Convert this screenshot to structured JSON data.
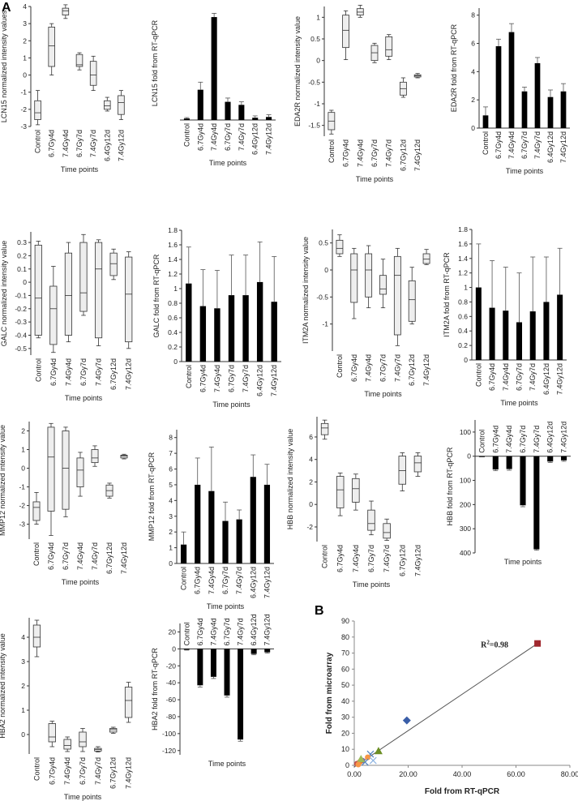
{
  "figure": {
    "panel_a_label": "A",
    "panel_b_label": "B"
  },
  "chart_data": [
    {
      "id": "lcn15_box",
      "type": "box",
      "ylabel": "LCN15 normalized intensity values",
      "xlabel": "Time points",
      "categories": [
        "Control",
        "6.7Gy4d",
        "7.4Gy4d",
        "6.7Gy7d",
        "7.4Gy7d",
        "6.4Gy12d",
        "7.4Gy12d"
      ],
      "ylim": [
        -3,
        4
      ],
      "yticks": [
        -3,
        -2,
        -1,
        0,
        1,
        2,
        3,
        4
      ],
      "boxes": [
        [
          -2.9,
          -2.6,
          -2.2,
          -1.5,
          -0.9
        ],
        [
          0,
          0.5,
          1.7,
          2.8,
          3
        ],
        [
          3.3,
          3.5,
          3.75,
          3.9,
          4.1
        ],
        [
          0.3,
          0.5,
          0.6,
          1.2,
          1.3
        ],
        [
          -0.9,
          -0.6,
          0,
          0.8,
          1.1
        ],
        [
          -2.1,
          -2,
          -1.8,
          -1.5,
          -1.3
        ],
        [
          -2.6,
          -2.3,
          -1.6,
          -1.2,
          -0.9
        ]
      ]
    },
    {
      "id": "lcn15_bar",
      "type": "bar",
      "ylabel": "LCN15 fold from RT-qPCR",
      "xlabel": "Time points",
      "categories": [
        "Control",
        "6.7Gy4d",
        "7.4Gy4d",
        "6.7Gy7d",
        "7.4Gy7d",
        "6.4Gy12d",
        "7.4Gy12d"
      ],
      "ylim": [
        0,
        75
      ],
      "yticks": [],
      "values": [
        1,
        20,
        68,
        12,
        10,
        1.5,
        2
      ],
      "errors": [
        0.6,
        5,
        2.5,
        2.5,
        2,
        1.2,
        1.5
      ]
    },
    {
      "id": "eda2r_box",
      "type": "box",
      "ylabel": "EDA2R normalized intensity value",
      "xlabel": "Time points",
      "categories": [
        "Control",
        "6.7Gy4d",
        "7.4Gy4d",
        "6.7Gy7d",
        "7.4Gy7d",
        "6.7Gy12d",
        "7.4Gy12d"
      ],
      "ylim": [
        -1.75,
        1.25
      ],
      "yticks": [
        -1.5,
        -1,
        -0.5,
        0,
        0.5,
        1
      ],
      "boxes": [
        [
          -1.7,
          -1.6,
          -1.4,
          -1.2,
          -1.15
        ],
        [
          0.02,
          0.3,
          0.7,
          1.05,
          1.15
        ],
        [
          1,
          1.05,
          1.12,
          1.2,
          1.28
        ],
        [
          -0.05,
          0,
          0.18,
          0.35,
          0.4
        ],
        [
          0.02,
          0.1,
          0.25,
          0.55,
          0.6
        ],
        [
          -0.85,
          -0.8,
          -0.65,
          -0.5,
          -0.4
        ],
        [
          -0.4,
          -0.38,
          -0.35,
          -0.33,
          -0.3
        ]
      ]
    },
    {
      "id": "eda2r_bar",
      "type": "bar",
      "ylabel": "EDA2R fold from RT-qPCR",
      "xlabel": "Time points",
      "categories": [
        "Control",
        "6.7Gy4d",
        "7.4Gy4d",
        "6.7Gy7d",
        "7.4Gy7d",
        "6.4Gy12d",
        "7.4Gy12d"
      ],
      "ylim": [
        0,
        8.5
      ],
      "yticks": [
        0,
        2,
        4,
        6,
        8
      ],
      "values": [
        0.9,
        5.8,
        6.8,
        2.6,
        4.6,
        2.2,
        2.6
      ],
      "errors": [
        0.6,
        0.5,
        0.6,
        0.3,
        0.4,
        0.5,
        0.55
      ]
    },
    {
      "id": "galc_box",
      "type": "box",
      "ylabel": "GALC normalized intensity value",
      "xlabel": "Time points",
      "categories": [
        "Control",
        "6.7Gy4d",
        "7.4Gy4d",
        "6.7Gy7d",
        "7.4Gy7d",
        "6.7Gy12d",
        "7.4Gy12d"
      ],
      "ylim": [
        -0.55,
        0.38
      ],
      "yticks": [
        -0.5,
        -0.4,
        -0.3,
        -0.2,
        -0.1,
        0,
        0.1,
        0.2,
        0.3
      ],
      "boxes": [
        [
          -0.42,
          -0.4,
          -0.12,
          0.28,
          0.31
        ],
        [
          -0.53,
          -0.47,
          -0.2,
          -0.03,
          0.12
        ],
        [
          -0.45,
          -0.4,
          -0.1,
          0.22,
          0.3
        ],
        [
          -0.25,
          -0.22,
          -0.08,
          0.3,
          0.36
        ],
        [
          -0.48,
          -0.42,
          0.1,
          0.3,
          0.32
        ],
        [
          0.02,
          0.05,
          0.14,
          0.22,
          0.25
        ],
        [
          -0.5,
          -0.45,
          -0.09,
          0.19,
          0.23
        ]
      ]
    },
    {
      "id": "galc_bar",
      "type": "bar",
      "ylabel": "GALC fold from RT-qPCR",
      "xlabel": "Time points",
      "categories": [
        "Control",
        "6.7Gy4d",
        "7.4Gy4d",
        "6.7Gy7d",
        "7.4Gy7d",
        "6.4Gy12d",
        "7.4Gy12d"
      ],
      "ylim": [
        0,
        1.8
      ],
      "yticks": [
        0,
        0.2,
        0.4,
        0.6,
        0.8,
        1,
        1.2,
        1.4,
        1.6,
        1.8
      ],
      "values": [
        1.07,
        0.76,
        0.73,
        0.91,
        0.91,
        1.09,
        0.82
      ],
      "errors": [
        0.5,
        0.5,
        0.52,
        0.55,
        0.55,
        0.55,
        0.62
      ]
    },
    {
      "id": "itm2a_box",
      "type": "box",
      "ylabel": "ITM2A normalized intensity value",
      "xlabel": "Time points",
      "categories": [
        "Control",
        "6.7Gy4d",
        "7.4Gy4d",
        "6.7Gy7d",
        "7.4Gy7d",
        "6.7Gy12d",
        "7.4Gy12d"
      ],
      "ylim": [
        -1.5,
        0.75
      ],
      "yticks": [
        -1,
        -0.5,
        0,
        0.5
      ],
      "boxes": [
        [
          0.25,
          0.3,
          0.4,
          0.55,
          0.65
        ],
        [
          -0.9,
          -0.6,
          0,
          0.3,
          0.4
        ],
        [
          -0.7,
          -0.5,
          0,
          0.3,
          0.45
        ],
        [
          -0.7,
          -0.45,
          -0.35,
          -0.1,
          0.2
        ],
        [
          -1.4,
          -1.2,
          -0.1,
          0.25,
          0.4
        ],
        [
          -1,
          -0.95,
          -0.55,
          -0.2,
          0.05
        ],
        [
          0.1,
          0.12,
          0.2,
          0.3,
          0.38
        ]
      ]
    },
    {
      "id": "itm2a_bar",
      "type": "bar",
      "ylabel": "ITM2A fold from RT-qPCR",
      "xlabel": "Time points",
      "categories": [
        "Control",
        "6.7Gy4d",
        "7.4Gy4d",
        "6.7Gy7d",
        "7.4Gy7d",
        "6.4Gy12d",
        "7.4Gy12d"
      ],
      "ylim": [
        0,
        1.8
      ],
      "yticks": [
        0,
        0.2,
        0.4,
        0.6,
        0.8,
        1,
        1.2,
        1.4,
        1.6,
        1.8
      ],
      "values": [
        1,
        0.72,
        0.68,
        0.52,
        0.67,
        0.8,
        0.9
      ],
      "errors": [
        0.6,
        0.65,
        0.6,
        0.68,
        0.75,
        0.62,
        0.64
      ]
    },
    {
      "id": "mmp12_box",
      "type": "box",
      "ylabel": "MMP12 normalized intensity value",
      "xlabel": "Time points",
      "categories": [
        "Control",
        "6.7Gy4d",
        "6.7Gy7d",
        "7.4Gy4d",
        "7.4Gy7d",
        "6.7Gy12d",
        "7.4Gy12d"
      ],
      "ylim": [
        -3.8,
        2.5
      ],
      "yticks": [
        -3,
        -2,
        -1,
        0,
        1,
        2
      ],
      "boxes": [
        [
          -3,
          -2.8,
          -2.1,
          -1.8,
          -1.3
        ],
        [
          -3.6,
          -2.3,
          0.6,
          2.2,
          2.4
        ],
        [
          -2.6,
          -2.2,
          0,
          2,
          2.2
        ],
        [
          -1.5,
          -1,
          -0.1,
          0.55,
          0.85
        ],
        [
          0.1,
          0.3,
          0.55,
          1,
          1.2
        ],
        [
          -1.6,
          -1.5,
          -1.2,
          -0.9,
          -0.8
        ],
        [
          0.5,
          0.55,
          0.65,
          0.7,
          0.75
        ]
      ]
    },
    {
      "id": "mmp12_bar",
      "type": "bar",
      "ylabel": "MMP12 fold from RT-qPCR",
      "xlabel": "Time points",
      "categories": [
        "Control",
        "6.7Gy4d",
        "7.4Gy4d",
        "6.7Gy7d",
        "7.4Gy7d",
        "6.4Gy12d",
        "7.4Gy12d"
      ],
      "ylim": [
        0,
        8.5
      ],
      "yticks": [
        0,
        1,
        2,
        3,
        4,
        5,
        6,
        7,
        8
      ],
      "values": [
        1.2,
        5,
        4.6,
        2.7,
        2.8,
        5.5,
        5
      ],
      "errors": [
        0.8,
        1.7,
        2.8,
        1.2,
        0.6,
        1.4,
        1.3
      ]
    },
    {
      "id": "hbb_box",
      "type": "box",
      "ylabel": "HBB normalized intensity value",
      "xlabel": "Time points",
      "categories": [
        "Control",
        "6.7Gy4d",
        "7.4Gy4d",
        "6.7Gy7d",
        "7.4Gy7d",
        "6.7Gy12d",
        "7.4Gy12d"
      ],
      "ylim": [
        -3.3,
        7.8
      ],
      "yticks": [
        -2,
        0,
        2,
        4,
        6
      ],
      "boxes": [
        [
          5.8,
          6.2,
          6.8,
          7.2,
          7.5
        ],
        [
          -1,
          -0.3,
          1.3,
          2.5,
          2.8
        ],
        [
          -0.5,
          0.2,
          1.4,
          2.3,
          2.7
        ],
        [
          -2.7,
          -2.3,
          -1.7,
          -0.5,
          0.3
        ],
        [
          -3.2,
          -3,
          -2.5,
          -1.7,
          -1.3
        ],
        [
          1.2,
          1.8,
          3,
          4.3,
          4.6
        ],
        [
          2.5,
          2.9,
          3.7,
          4.3,
          4.6
        ]
      ]
    },
    {
      "id": "hbb_bar",
      "type": "bar",
      "ylabel": "HBB fold from RT-qPCR",
      "xlabel": "Time points",
      "categories": [
        "Control",
        "6.7Gy4d",
        "7.4Gy4d",
        "6.7Gy7d",
        "7.4Gy7d",
        "6.4Gy12d",
        "7.4Gy12d"
      ],
      "ylim": [
        -400,
        150
      ],
      "yticks": [
        100,
        0,
        -100,
        -200,
        -300,
        -400
      ],
      "ytick_labels": [
        "100",
        "0",
        "100",
        "200",
        "300",
        "400"
      ],
      "values": [
        -2,
        -55,
        -53,
        -203,
        -385,
        -22,
        -17
      ],
      "errors": [
        1,
        5,
        5,
        6,
        4,
        4,
        4
      ]
    },
    {
      "id": "hba2_box",
      "type": "box",
      "ylabel": "HBA2 normalized intensity value",
      "xlabel": "Time points",
      "categories": [
        "Control",
        "6.7Gy4d",
        "7.4Gy4d",
        "6.7Gy7d",
        "7.4Gy7d",
        "6.7Gy12d",
        "7.4Gy12d"
      ],
      "ylim": [
        -0.8,
        4.8
      ],
      "yticks": [
        0,
        1,
        2,
        3,
        4
      ],
      "boxes": [
        [
          3.2,
          3.6,
          4,
          4.5,
          4.7
        ],
        [
          -0.5,
          -0.3,
          -0.1,
          0.45,
          0.55
        ],
        [
          -0.7,
          -0.6,
          -0.45,
          -0.2,
          -0.1
        ],
        [
          -0.7,
          -0.5,
          -0.3,
          0.1,
          0.25
        ],
        [
          -0.72,
          -0.68,
          -0.62,
          -0.57,
          -0.5
        ],
        [
          0.05,
          0.1,
          0.2,
          0.25,
          0.3
        ],
        [
          0.5,
          0.7,
          1.4,
          1.95,
          2.15
        ]
      ]
    },
    {
      "id": "hba2_bar",
      "type": "bar",
      "ylabel": "HBA2 fold from RT-qPCR",
      "xlabel": "Time points",
      "categories": [
        "Control",
        "6.7Gy4d",
        "7.4Gy4d",
        "6.7Gy7d",
        "7.4Gy7d",
        "6.4Gy12d",
        "7.4Gy12d"
      ],
      "ylim": [
        -125,
        30
      ],
      "yticks": [
        20,
        0,
        -20,
        -40,
        -60,
        -80,
        -100,
        -120
      ],
      "values": [
        -1,
        -43,
        -33,
        -55,
        -107,
        -6,
        -4
      ],
      "errors": [
        0.5,
        2,
        2,
        2,
        2,
        1,
        1
      ]
    },
    {
      "id": "scatter_b",
      "type": "scatter",
      "xlabel": "Fold from RT-qPCR",
      "ylabel": "Fold from microarray",
      "xlim": [
        0,
        80
      ],
      "ylim": [
        0,
        90
      ],
      "xticks": [
        0,
        20,
        40,
        60,
        80
      ],
      "xtick_labels": [
        "0.00",
        "20.00",
        "40.00",
        "60.00",
        "80.00"
      ],
      "yticks": [
        0,
        10,
        20,
        30,
        40,
        50,
        60,
        70,
        80,
        90
      ],
      "annotation": "R²=0.98",
      "points": [
        {
          "x": 68,
          "y": 76,
          "marker": "square",
          "color": "#a0282e"
        },
        {
          "x": 19.5,
          "y": 28,
          "marker": "diamond",
          "color": "#3a5ea8"
        },
        {
          "x": 9,
          "y": 9,
          "marker": "triangle",
          "color": "#6b8e23"
        },
        {
          "x": 6,
          "y": 7,
          "marker": "x",
          "color": "#4f81bd"
        },
        {
          "x": 5,
          "y": 5,
          "marker": "circle",
          "color": "#f79646"
        },
        {
          "x": 3,
          "y": 3,
          "marker": "circle",
          "color": "#8064a2"
        },
        {
          "x": 2,
          "y": 2,
          "marker": "circle",
          "color": "#e57f2b"
        },
        {
          "x": 1,
          "y": 1,
          "marker": "circle",
          "color": "#c0504d"
        },
        {
          "x": 4,
          "y": 2,
          "marker": "x",
          "color": "#4f81bd"
        },
        {
          "x": 2.5,
          "y": 4,
          "marker": "triangle",
          "color": "#9bbb59"
        },
        {
          "x": 1.5,
          "y": 0.5,
          "marker": "circle",
          "color": "#f79646"
        },
        {
          "x": 7,
          "y": 3,
          "marker": "x",
          "color": "#8db3e2"
        }
      ],
      "fit_line": {
        "x0": 0,
        "y0": -1,
        "x1": 68,
        "y1": 76
      }
    }
  ]
}
